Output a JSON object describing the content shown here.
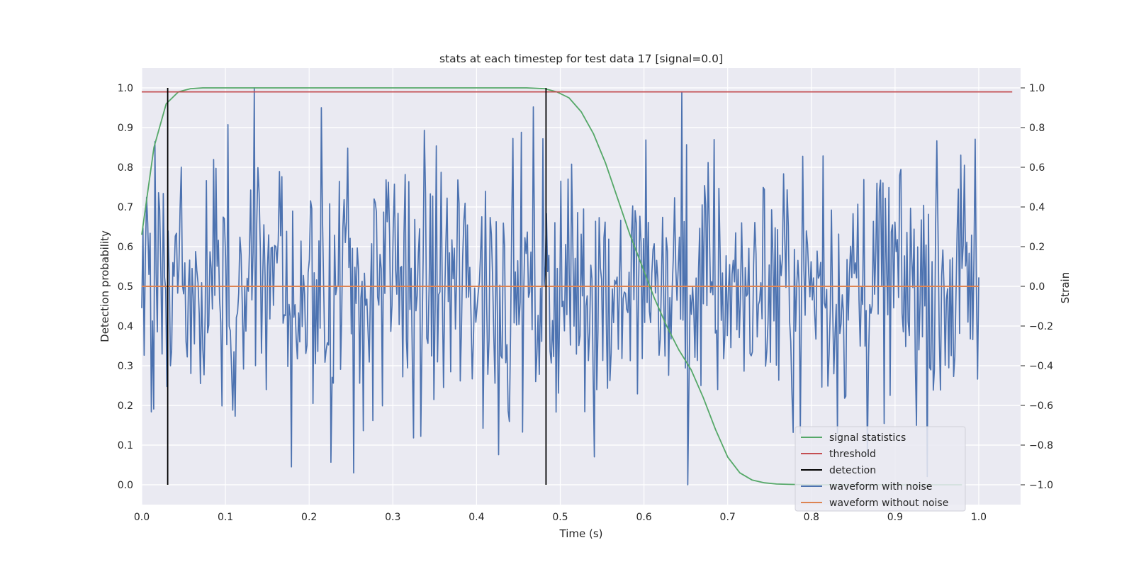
{
  "chart_data": {
    "type": "line",
    "title": "stats at each timestep for test data 17 [signal=0.0]",
    "xlabel": "Time (s)",
    "ylabel_left": "Detection probability",
    "ylabel_right": "Strain",
    "xlim": [
      0.0,
      1.05
    ],
    "ylim_left": [
      -0.05,
      1.05
    ],
    "ylim_right": [
      -1.1,
      1.1
    ],
    "grid": true,
    "legend_placement": "lower-right",
    "x_ticks": [
      "0.0",
      "0.1",
      "0.2",
      "0.3",
      "0.4",
      "0.5",
      "0.6",
      "0.7",
      "0.8",
      "0.9",
      "1.0"
    ],
    "y_left_ticks": [
      "0.0",
      "0.1",
      "0.2",
      "0.3",
      "0.4",
      "0.5",
      "0.6",
      "0.7",
      "0.8",
      "0.9",
      "1.0"
    ],
    "y_right_ticks": [
      "−1.0",
      "−0.8",
      "−0.6",
      "−0.4",
      "−0.2",
      "0.0",
      "0.2",
      "0.4",
      "0.6",
      "0.8",
      "1.0"
    ],
    "colors": {
      "background": "#eaeaf2",
      "grid": "#ffffff",
      "signal_statistics": "#55a868",
      "threshold": "#c44e52",
      "detection": "#000000",
      "waveform_noise": "#4c72b0",
      "waveform_clean": "#dd8452"
    },
    "series": [
      {
        "name": "signal statistics",
        "axis": "left",
        "x": [
          0.0,
          0.0146,
          0.0292,
          0.0438,
          0.0583,
          0.0729,
          0.1,
          0.2,
          0.3,
          0.4,
          0.46,
          0.4813,
          0.4958,
          0.5104,
          0.525,
          0.5396,
          0.5542,
          0.5688,
          0.5833,
          0.5979,
          0.6125,
          0.6271,
          0.6417,
          0.6563,
          0.6708,
          0.6854,
          0.7,
          0.7146,
          0.7292,
          0.7438,
          0.7583,
          0.7729,
          0.8,
          0.9,
          0.98
        ],
        "y": [
          0.63,
          0.85,
          0.96,
          0.99,
          0.998,
          1.0,
          1.0,
          1.0,
          1.0,
          1.0,
          1.0,
          0.998,
          0.99,
          0.975,
          0.94,
          0.885,
          0.81,
          0.72,
          0.63,
          0.55,
          0.47,
          0.4,
          0.34,
          0.29,
          0.22,
          0.14,
          0.07,
          0.03,
          0.012,
          0.005,
          0.002,
          0.001,
          0.0,
          0.0,
          0.0
        ]
      },
      {
        "name": "threshold",
        "axis": "left",
        "x": [
          0.0,
          1.04
        ],
        "y": [
          0.99,
          0.99
        ]
      },
      {
        "name": "detection",
        "axis": "left",
        "x": [
          0.031,
          0.483
        ],
        "y_range": [
          0.0,
          1.0
        ]
      },
      {
        "name": "waveform with noise",
        "axis": "right",
        "x_range": [
          0.0,
          1.0
        ],
        "n_points": 700,
        "approx_std": 0.33,
        "range": [
          -1.0,
          1.0
        ],
        "notable_peaks": [
          {
            "x": 0.134,
            "y": 1.0
          },
          {
            "x": 0.215,
            "y": 0.9
          },
          {
            "x": 0.645,
            "y": 0.98
          },
          {
            "x": 0.653,
            "y": -1.0
          },
          {
            "x": 0.253,
            "y": -0.94
          },
          {
            "x": 0.179,
            "y": -0.91
          }
        ]
      },
      {
        "name": "waveform without noise",
        "axis": "right",
        "x": [
          0.0,
          1.0
        ],
        "y": [
          0.0,
          0.0
        ]
      }
    ],
    "legend": [
      {
        "label": "signal statistics",
        "color": "#55a868"
      },
      {
        "label": "threshold",
        "color": "#c44e52"
      },
      {
        "label": "detection",
        "color": "#000000"
      },
      {
        "label": "waveform with noise",
        "color": "#4c72b0"
      },
      {
        "label": "waveform without noise",
        "color": "#dd8452"
      }
    ]
  }
}
